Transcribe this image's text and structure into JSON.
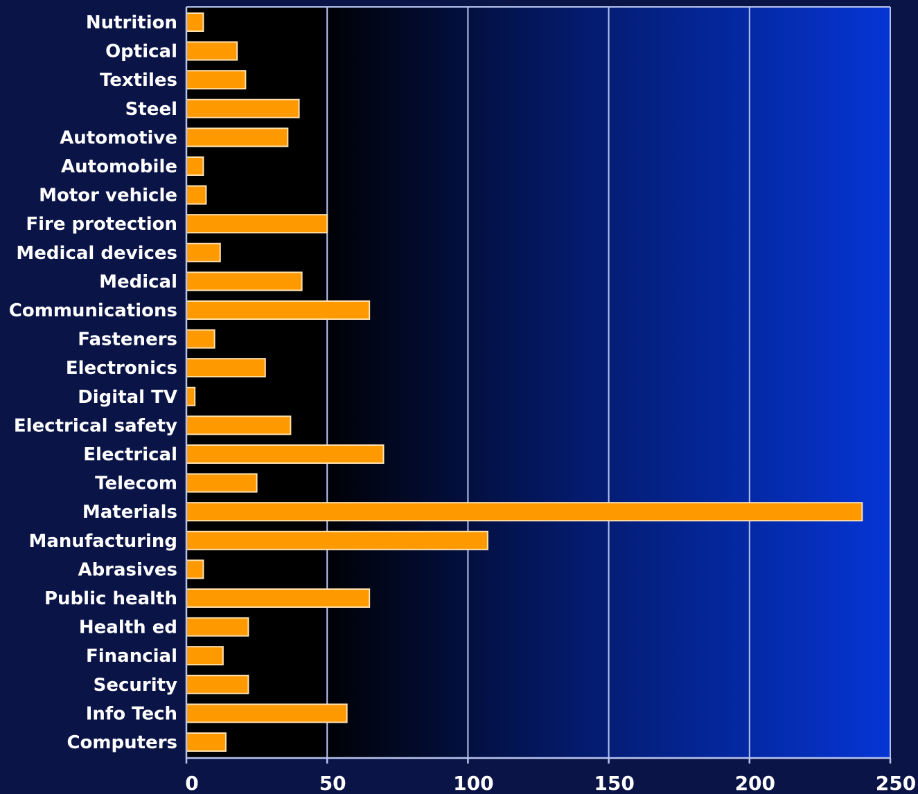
{
  "chart_data": {
    "type": "bar",
    "orientation": "horizontal",
    "title": "",
    "xlabel": "",
    "ylabel": "",
    "xlim": [
      0,
      250
    ],
    "xticks": [
      0,
      50,
      100,
      150,
      200,
      250
    ],
    "grid": true,
    "categories": [
      "Nutrition",
      "Optical",
      "Textiles",
      "Steel",
      "Automotive",
      "Automobile",
      "Motor vehicle",
      "Fire protection",
      "Medical devices",
      "Medical",
      "Communications",
      "Fasteners",
      "Electronics",
      "Digital TV",
      "Electrical safety",
      "Electrical",
      "Telecom",
      "Materials",
      "Manufacturing",
      "Abrasives",
      "Public health",
      "Health ed",
      "Financial",
      "Security",
      "Info Tech",
      "Computers"
    ],
    "values": [
      6,
      18,
      21,
      40,
      36,
      6,
      7,
      50,
      12,
      41,
      65,
      10,
      28,
      3,
      37,
      70,
      25,
      240,
      107,
      6,
      65,
      22,
      13,
      22,
      57,
      14
    ],
    "colors": {
      "bar_fill": "#ff9900",
      "bar_stroke": "#ffe2b0",
      "grid": "#b8c4f0",
      "text": "#ffffff",
      "frame_bg": "#0a1446",
      "plot_gradient_left": "#000000",
      "plot_gradient_right": "#0535d4"
    }
  }
}
